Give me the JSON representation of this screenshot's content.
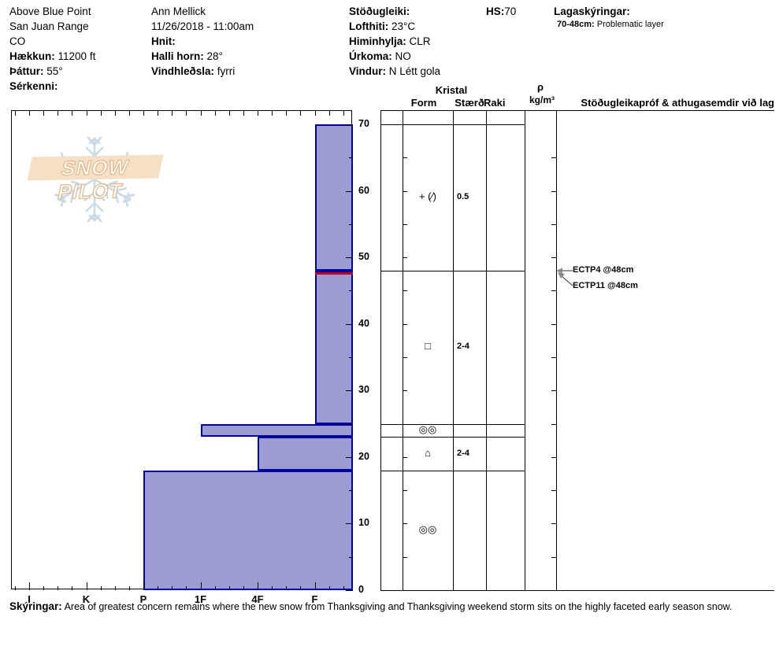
{
  "header": {
    "col1": {
      "l1": "Above Blue Point",
      "l2": "San Juan Range",
      "l3": "CO",
      "l4_label": "Hækkun:",
      "l4_value": "11200 ft",
      "l5_label": "Þáttur:",
      "l5_value": "55°",
      "l6_label": "Sérkenni:"
    },
    "col2": {
      "l1": "Ann Mellick",
      "l2": "11/26/2018 - 11:00am",
      "l3_label": "Hnit:",
      "l4_label": "Halli horn:",
      "l4_value": "28°",
      "l5_label": "Vindhleðsla:",
      "l5_value": "fyrri"
    },
    "col3": {
      "l1_label": "Stöðugleiki:",
      "l2_label": "Lofthiti:",
      "l2_value": "23°C",
      "l3_label": "Himinhylja:",
      "l3_value": "CLR",
      "l4_label": "Úrkoma:",
      "l4_value": "NO",
      "l5_label": "Vindur:",
      "l5_value": "N Létt gola"
    },
    "hs_label": "HS:",
    "hs_value": "70",
    "col5_title": "Lagaskýringar:",
    "col5_line_label": "70-48cm:",
    "col5_line_value": "Problematic layer"
  },
  "logo": {
    "text": "SNOW PILOT"
  },
  "table_headers": {
    "kristal": "Kristal",
    "form": "Form",
    "staerd": "Stærð",
    "raki": "Raki",
    "rho": "ρ",
    "rho_unit": "kg/m³",
    "comments": "Stöðugleikapróf & athugasemdir við lag"
  },
  "chart_data": {
    "type": "bar",
    "variant": "snow-hardness-profile",
    "depth_axis": {
      "unit": "cm",
      "min": 0,
      "max": 70,
      "major_ticks": [
        0,
        10,
        20,
        30,
        40,
        50,
        60,
        70
      ],
      "minor_step": 5
    },
    "hardness_axis": {
      "labels": [
        "I",
        "K",
        "P",
        "1F",
        "4F",
        "F"
      ]
    },
    "hs_total_cm": 70,
    "layers": [
      {
        "top_cm": 70,
        "bottom_cm": 48,
        "hardness": "F",
        "grain_form_symbol": "+ (∕)",
        "grain_size_mm": "0.5"
      },
      {
        "top_cm": 48,
        "bottom_cm": 25,
        "hardness": "F",
        "grain_form_symbol": "□",
        "grain_size_mm": "2-4"
      },
      {
        "top_cm": 25,
        "bottom_cm": 23,
        "hardness": "1F",
        "grain_form_symbol": "◎◎",
        "grain_size_mm": ""
      },
      {
        "top_cm": 23,
        "bottom_cm": 18,
        "hardness": "4F",
        "grain_form_symbol": "⌂",
        "grain_size_mm": "2-4"
      },
      {
        "top_cm": 18,
        "bottom_cm": 0,
        "hardness": "P",
        "grain_form_symbol": "◎◎",
        "grain_size_mm": ""
      }
    ],
    "problem_layer_cm": 48,
    "stability_tests": [
      {
        "label": "ECTP4 @48cm",
        "depth_cm": 48
      },
      {
        "label": "ECTP11 @48cm",
        "depth_cm": 48
      }
    ]
  },
  "footer": {
    "label": "Skýringar:",
    "text": "Area of greatest concern remains where the new snow from Thanksgiving and Thanksgiving weekend storm sits on the highly faceted early season snow."
  },
  "colors": {
    "bar_fill": "#9c9cd2",
    "bar_border": "#00009c",
    "problem_layer_red": "#c00010",
    "arrow_gray": "#888888",
    "logo_band": "#f5e0c5",
    "logo_text_outline": "#debb93",
    "snowflake": "#ccdae6"
  }
}
